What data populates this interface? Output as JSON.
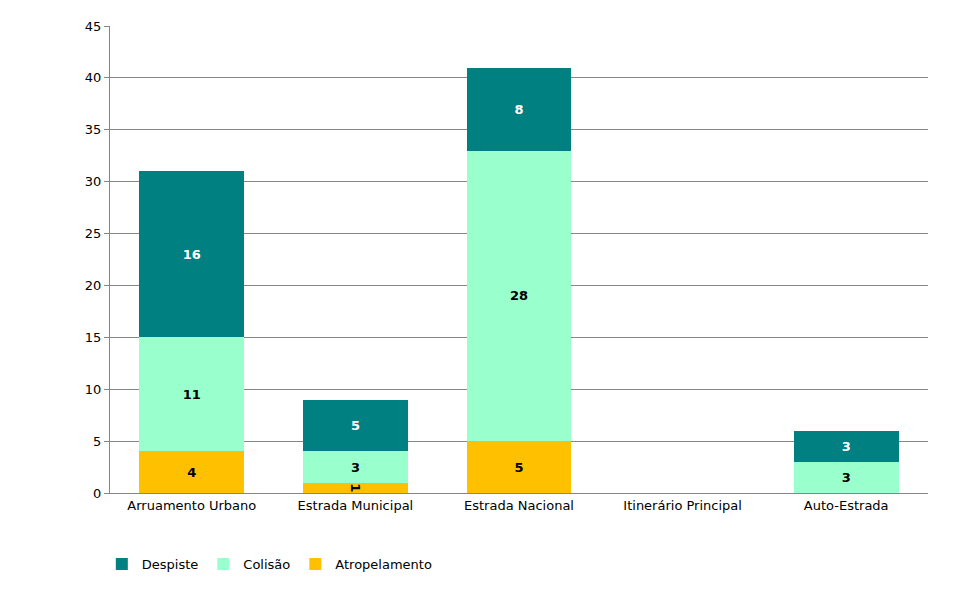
{
  "chart_data": {
    "type": "bar",
    "stacked": true,
    "data_labels": true,
    "grid": true,
    "legend": "bottom left",
    "categories": [
      "Arruamento Urbano",
      "Estrada Municipal",
      "Estrada Nacional",
      "Itinerário Principal",
      "Auto-Estrada"
    ],
    "series": [
      {
        "name": "Atropelamento",
        "color": "#FFC000",
        "values": [
          4,
          1,
          5,
          null,
          null
        ]
      },
      {
        "name": "Colisão",
        "color": "#99FFCC",
        "values": [
          11,
          3,
          28,
          null,
          3
        ]
      },
      {
        "name": "Despiste",
        "color": "#008080",
        "values": [
          16,
          5,
          8,
          null,
          3
        ]
      }
    ],
    "ylim": [
      0,
      45
    ],
    "yticks": [
      0,
      5,
      10,
      15,
      20,
      25,
      30,
      35,
      40,
      45
    ]
  }
}
